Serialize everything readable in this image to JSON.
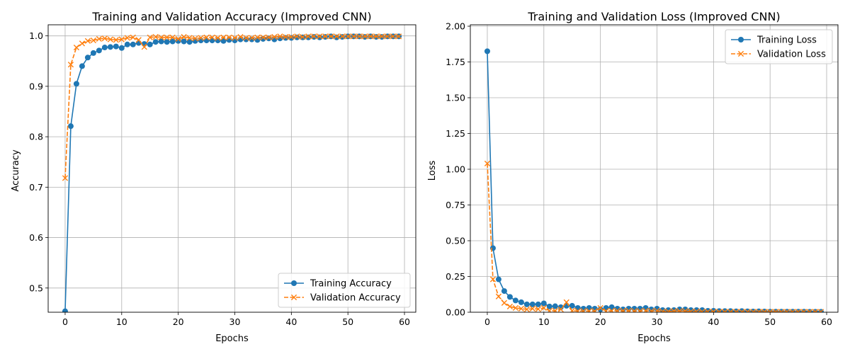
{
  "chart_data": [
    {
      "type": "line",
      "title": "Training and Validation Accuracy (Improved CNN)",
      "xlabel": "Epochs",
      "ylabel": "Accuracy",
      "xlim": [
        -3,
        62
      ],
      "ylim": [
        0.452,
        1.022
      ],
      "xticks": [
        0,
        10,
        20,
        30,
        40,
        50,
        60
      ],
      "yticks": [
        0.5,
        0.6,
        0.7,
        0.8,
        0.9,
        1.0
      ],
      "ytick_labels": [
        "0.5",
        "0.6",
        "0.7",
        "0.8",
        "0.9",
        "1.0"
      ],
      "grid": true,
      "legend": "lower-right",
      "x": [
        0,
        1,
        2,
        3,
        4,
        5,
        6,
        7,
        8,
        9,
        10,
        11,
        12,
        13,
        14,
        15,
        16,
        17,
        18,
        19,
        20,
        21,
        22,
        23,
        24,
        25,
        26,
        27,
        28,
        29,
        30,
        31,
        32,
        33,
        34,
        35,
        36,
        37,
        38,
        39,
        40,
        41,
        42,
        43,
        44,
        45,
        46,
        47,
        48,
        49,
        50,
        51,
        52,
        53,
        54,
        55,
        56,
        57,
        58,
        59
      ],
      "series": [
        {
          "name": "Training Accuracy",
          "color": "#1f77b4",
          "style": "solid",
          "marker": "circle",
          "values": [
            0.454,
            0.821,
            0.905,
            0.94,
            0.957,
            0.966,
            0.971,
            0.977,
            0.978,
            0.979,
            0.976,
            0.983,
            0.983,
            0.986,
            0.984,
            0.983,
            0.988,
            0.989,
            0.988,
            0.989,
            0.99,
            0.989,
            0.988,
            0.99,
            0.991,
            0.991,
            0.991,
            0.991,
            0.99,
            0.992,
            0.991,
            0.993,
            0.993,
            0.993,
            0.992,
            0.994,
            0.995,
            0.993,
            0.995,
            0.996,
            0.996,
            0.997,
            0.997,
            0.997,
            0.998,
            0.997,
            0.998,
            0.999,
            0.997,
            0.998,
            0.999,
            0.999,
            0.999,
            0.998,
            0.999,
            0.998,
            0.998,
            0.999,
            0.999,
            0.999
          ]
        },
        {
          "name": "Validation Accuracy",
          "color": "#ff7f0e",
          "style": "dashed",
          "marker": "x",
          "values": [
            0.718,
            0.943,
            0.977,
            0.985,
            0.99,
            0.991,
            0.994,
            0.995,
            0.993,
            0.992,
            0.993,
            0.996,
            0.997,
            0.992,
            0.978,
            0.997,
            0.998,
            0.997,
            0.997,
            0.997,
            0.994,
            0.998,
            0.996,
            0.995,
            0.996,
            0.997,
            0.997,
            0.996,
            0.997,
            0.997,
            0.996,
            0.998,
            0.996,
            0.996,
            0.997,
            0.997,
            0.997,
            0.998,
            0.999,
            0.998,
            0.998,
            0.999,
            0.998,
            0.999,
            0.999,
            0.999,
            0.999,
            0.999,
            0.999,
            0.999,
            0.999,
            0.999,
            0.999,
            0.999,
            0.999,
            0.999,
            0.999,
            0.999,
            0.999,
            0.999
          ]
        }
      ]
    },
    {
      "type": "line",
      "title": "Training and Validation Loss (Improved CNN)",
      "xlabel": "Epochs",
      "ylabel": "Loss",
      "xlim": [
        -3,
        62
      ],
      "ylim": [
        0,
        2.01
      ],
      "xticks": [
        0,
        10,
        20,
        30,
        40,
        50,
        60
      ],
      "yticks": [
        0,
        0.25,
        0.5,
        0.75,
        1.0,
        1.25,
        1.5,
        1.75,
        2.0
      ],
      "ytick_labels": [
        "0.00",
        "0.25",
        "0.50",
        "0.75",
        "1.00",
        "1.25",
        "1.50",
        "1.75",
        "2.00"
      ],
      "grid": true,
      "legend": "top-right",
      "x": [
        0,
        1,
        2,
        3,
        4,
        5,
        6,
        7,
        8,
        9,
        10,
        11,
        12,
        13,
        14,
        15,
        16,
        17,
        18,
        19,
        20,
        21,
        22,
        23,
        24,
        25,
        26,
        27,
        28,
        29,
        30,
        31,
        32,
        33,
        34,
        35,
        36,
        37,
        38,
        39,
        40,
        41,
        42,
        43,
        44,
        45,
        46,
        47,
        48,
        49,
        50,
        51,
        52,
        53,
        54,
        55,
        56,
        57,
        58,
        59
      ],
      "series": [
        {
          "name": "Training Loss",
          "color": "#1f77b4",
          "style": "solid",
          "marker": "circle",
          "values": [
            1.825,
            0.448,
            0.23,
            0.148,
            0.107,
            0.082,
            0.07,
            0.055,
            0.055,
            0.055,
            0.062,
            0.04,
            0.042,
            0.035,
            0.045,
            0.045,
            0.03,
            0.025,
            0.03,
            0.025,
            0.02,
            0.03,
            0.035,
            0.025,
            0.02,
            0.025,
            0.025,
            0.025,
            0.03,
            0.02,
            0.025,
            0.015,
            0.015,
            0.015,
            0.02,
            0.02,
            0.015,
            0.015,
            0.015,
            0.01,
            0.01,
            0.008,
            0.008,
            0.008,
            0.006,
            0.008,
            0.006,
            0.005,
            0.006,
            0.005,
            0.004,
            0.004,
            0.004,
            0.004,
            0.004,
            0.004,
            0.004,
            0.003,
            0.003,
            0.003
          ]
        },
        {
          "name": "Validation Loss",
          "color": "#ff7f0e",
          "style": "dashed",
          "marker": "x",
          "values": [
            1.04,
            0.23,
            0.11,
            0.065,
            0.04,
            0.03,
            0.025,
            0.02,
            0.025,
            0.022,
            0.03,
            0.01,
            0.01,
            0.02,
            0.07,
            0.01,
            0.008,
            0.008,
            0.008,
            0.008,
            0.03,
            0.008,
            0.01,
            0.01,
            0.01,
            0.01,
            0.008,
            0.008,
            0.01,
            0.008,
            0.01,
            0.005,
            0.005,
            0.008,
            0.008,
            0.008,
            0.005,
            0.005,
            0.004,
            0.004,
            0.004,
            0.003,
            0.003,
            0.003,
            0.003,
            0.003,
            0.003,
            0.003,
            0.003,
            0.003,
            0.003,
            0.003,
            0.003,
            0.003,
            0.003,
            0.003,
            0.003,
            0.003,
            0.003,
            0.003
          ]
        }
      ]
    }
  ]
}
